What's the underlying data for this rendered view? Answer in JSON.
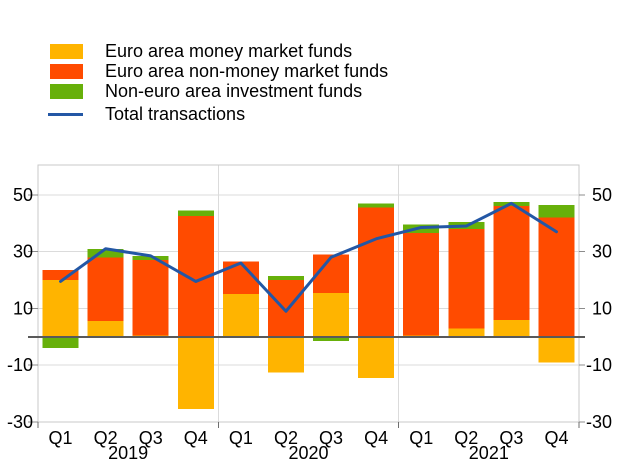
{
  "legend": {
    "items": [
      {
        "label": "Euro area money market funds",
        "swatch": "rect",
        "color": "#FFB400"
      },
      {
        "label": "Euro area non-money market funds",
        "swatch": "rect",
        "color": "#FF4B00"
      },
      {
        "label": "Non-euro area investment funds",
        "swatch": "rect",
        "color": "#67B00A"
      },
      {
        "label": "Total transactions",
        "swatch": "line",
        "color": "#2357A5"
      }
    ]
  },
  "chart_data": {
    "type": "bar",
    "stacked": true,
    "title": "",
    "categories": [
      "Q1",
      "Q2",
      "Q3",
      "Q4",
      "Q1",
      "Q2",
      "Q3",
      "Q4",
      "Q1",
      "Q2",
      "Q3",
      "Q4"
    ],
    "year_groups": [
      {
        "label": "2019",
        "start": 0,
        "end": 3
      },
      {
        "label": "2020",
        "start": 4,
        "end": 7
      },
      {
        "label": "2021",
        "start": 8,
        "end": 11
      }
    ],
    "series": [
      {
        "name": "Euro area money market funds",
        "color": "#FFB400",
        "values": [
          20,
          5.5,
          0.5,
          -25.5,
          15,
          -12.5,
          15.5,
          -14.5,
          0.5,
          3,
          6,
          -9
        ]
      },
      {
        "name": "Euro area non-money market funds",
        "color": "#FF4B00",
        "values": [
          3.5,
          22.5,
          26.5,
          42.5,
          11.5,
          20,
          13.5,
          45.5,
          36,
          35,
          40,
          42
        ]
      },
      {
        "name": "Non-euro area investment funds",
        "color": "#67B00A",
        "values": [
          -4,
          3,
          1.5,
          2,
          -0.5,
          1.5,
          -1.5,
          1.5,
          3,
          2.5,
          1.5,
          4.5
        ]
      }
    ],
    "line_series": {
      "name": "Total transactions",
      "color": "#2357A5",
      "values": [
        19.5,
        31,
        28.5,
        19.5,
        26,
        9,
        28,
        34.5,
        38.5,
        39,
        47,
        37
      ]
    },
    "yticks": [
      -30,
      -10,
      10,
      30,
      50
    ],
    "ylim": [
      -30,
      60.5
    ],
    "grid": true,
    "legend_position": "top-left",
    "colors": {
      "grid": "#DBDBDB",
      "border": "#C9C9C9",
      "zero_line": "#595959",
      "tick": "#8C8C8C",
      "text": "#000000",
      "background": "#FFFFFF"
    }
  }
}
